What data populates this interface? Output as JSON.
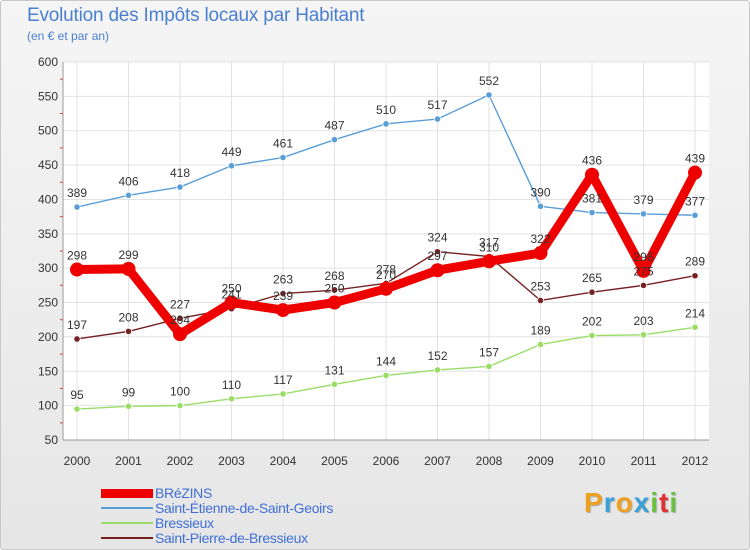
{
  "title": "Evolution des Impôts locaux par Habitant",
  "subtitle": "(en € et par an)",
  "logo": {
    "letters": [
      "P",
      "r",
      "o",
      "x",
      "i",
      "t",
      "i"
    ],
    "colors": [
      "#f0a020",
      "#3aa0d8",
      "#f0a020",
      "#3aa0d8",
      "#6cc040",
      "#e03030",
      "#6cc040"
    ]
  },
  "chart_data": {
    "type": "line",
    "categories": [
      "2000",
      "2001",
      "2002",
      "2003",
      "2004",
      "2005",
      "2006",
      "2007",
      "2008",
      "2009",
      "2010",
      "2011",
      "2012"
    ],
    "ylim": [
      50,
      600
    ],
    "yticks": [
      50,
      100,
      150,
      200,
      250,
      300,
      350,
      400,
      450,
      500,
      550,
      600
    ],
    "grid": true,
    "legend_position": "bottom-left",
    "series": [
      {
        "name": "BRéZINS",
        "color": "#ee0000",
        "values": [
          298,
          299,
          204,
          250,
          239,
          250,
          270,
          297,
          310,
          322,
          436,
          296,
          439
        ],
        "labels": [
          "298",
          "299",
          "204",
          "250",
          "239",
          "250",
          "270",
          "297",
          "310",
          "322",
          "436",
          "296",
          "439"
        ]
      },
      {
        "name": "Saint-Étienne-de-Saint-Geoirs",
        "color": "#5a9ed8",
        "values": [
          389,
          406,
          418,
          449,
          461,
          487,
          510,
          517,
          552,
          390,
          381,
          379,
          377
        ],
        "labels": [
          "389",
          "406",
          "418",
          "449",
          "461",
          "487",
          "510",
          "517",
          "552",
          "390",
          "381",
          "379",
          "377"
        ]
      },
      {
        "name": "Bressieux",
        "color": "#99dd66",
        "values": [
          95,
          99,
          100,
          110,
          117,
          131,
          144,
          152,
          157,
          189,
          202,
          203,
          214
        ],
        "labels": [
          "95",
          "99",
          "100",
          "110",
          "117",
          "131",
          "144",
          "152",
          "157",
          "189",
          "202",
          "203",
          "214"
        ]
      },
      {
        "name": "Saint-Pierre-de-Bressieux",
        "color": "#772222",
        "values": [
          197,
          208,
          227,
          241,
          263,
          268,
          278,
          324,
          317,
          253,
          265,
          275,
          289
        ],
        "labels": [
          "197",
          "208",
          "227",
          "241",
          "263",
          "268",
          "278",
          "324",
          "317",
          "253",
          "265",
          "275",
          "289"
        ]
      }
    ]
  }
}
